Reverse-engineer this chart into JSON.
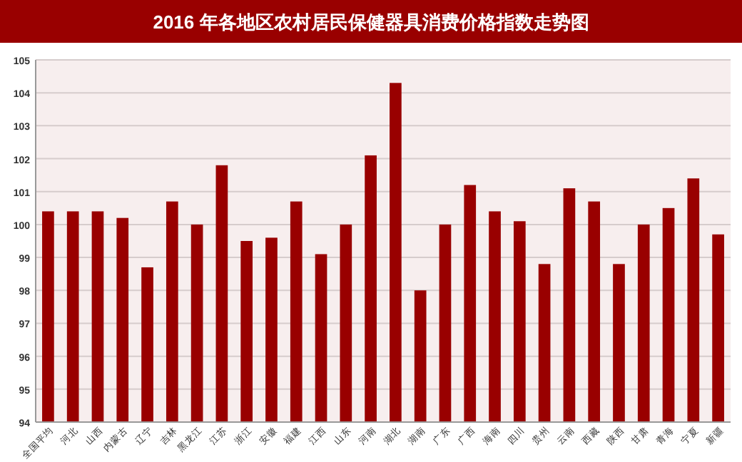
{
  "chart_data": {
    "type": "bar",
    "title": "2016 年各地区农村居民保健器具消费价格指数走势图",
    "categories": [
      "全国平均",
      "河北",
      "山西",
      "内蒙古",
      "辽宁",
      "吉林",
      "黑龙江",
      "江苏",
      "浙江",
      "安徽",
      "福建",
      "江西",
      "山东",
      "河南",
      "湖北",
      "湖南",
      "广东",
      "广西",
      "海南",
      "四川",
      "贵州",
      "云南",
      "西藏",
      "陕西",
      "甘肃",
      "青海",
      "宁夏",
      "新疆"
    ],
    "values": [
      100.4,
      100.4,
      100.4,
      100.2,
      98.7,
      100.7,
      100.0,
      101.8,
      99.5,
      99.6,
      100.7,
      99.1,
      100.0,
      102.1,
      104.3,
      98.0,
      100.0,
      101.2,
      100.4,
      100.1,
      98.8,
      101.1,
      100.7,
      98.8,
      100.0,
      100.5,
      101.4,
      99.7
    ],
    "color": "#990000",
    "ylim": [
      94,
      105
    ],
    "yticks": [
      94,
      95,
      96,
      97,
      98,
      99,
      100,
      101,
      102,
      103,
      104,
      105
    ],
    "grid": "y"
  }
}
